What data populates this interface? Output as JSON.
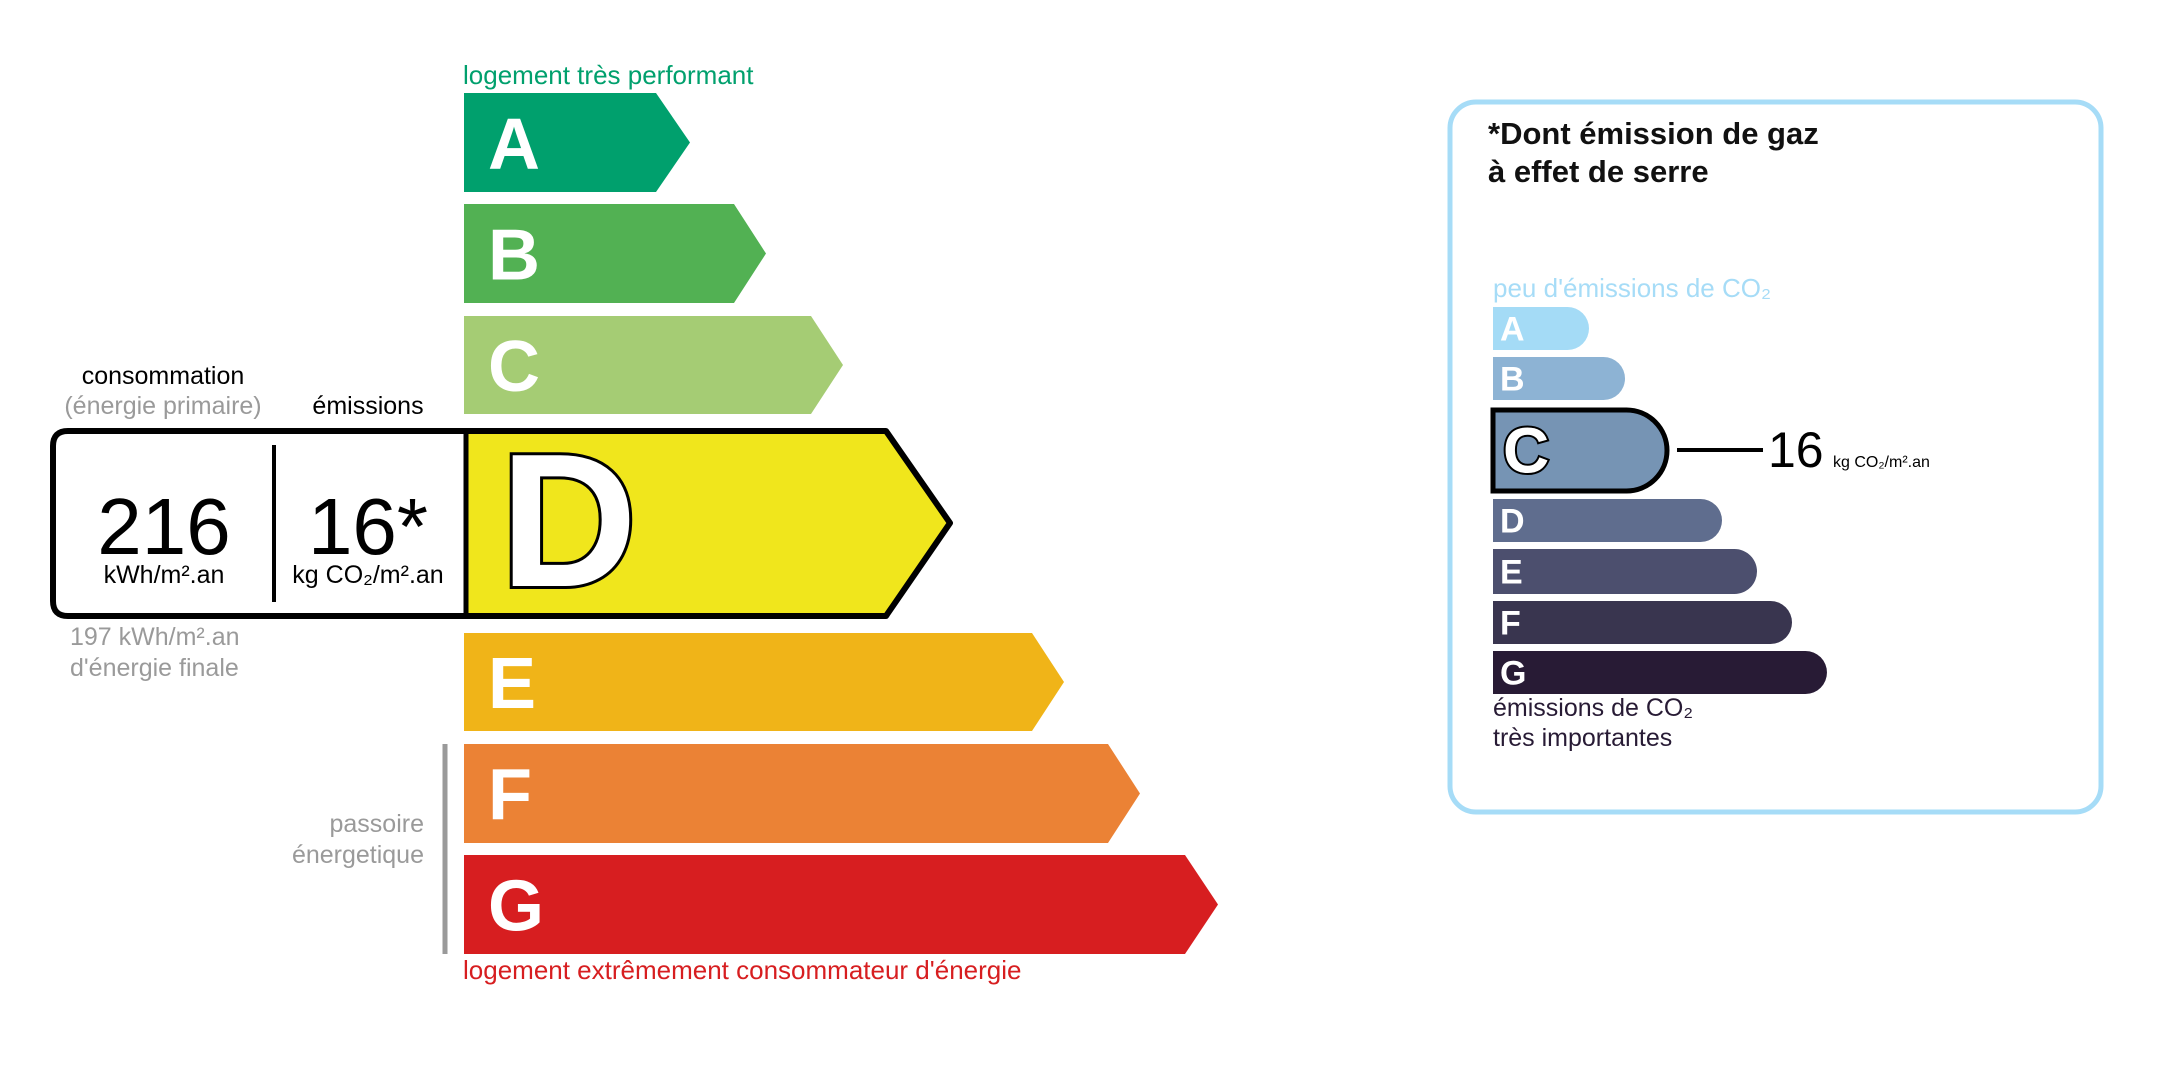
{
  "energy": {
    "top_label": "logement très performant",
    "bottom_label": "logement extrêmement consommateur d'énergie",
    "passoire_line1": "passoire",
    "passoire_line2": "énergetique",
    "consumption_title": "consommation",
    "consumption_subtitle": "(énergie primaire)",
    "emissions_title": "émissions",
    "consumption_value": "216",
    "consumption_unit": "kWh/m².an",
    "emissions_value": "16*",
    "emissions_unit": "kg CO₂/m².an",
    "final_value": "197 kWh/m².an",
    "final_label": "d'énergie finale",
    "current_class": "D",
    "classes": [
      {
        "letter": "A",
        "color": "#00a06d"
      },
      {
        "letter": "B",
        "color": "#52b153"
      },
      {
        "letter": "C",
        "color": "#a5cc74"
      },
      {
        "letter": "D",
        "color": "#f0e61c"
      },
      {
        "letter": "E",
        "color": "#f0b418"
      },
      {
        "letter": "F",
        "color": "#eb8235"
      },
      {
        "letter": "G",
        "color": "#d71e20"
      }
    ],
    "top_color": "#00a06d",
    "bottom_color": "#d71e20"
  },
  "ghg": {
    "title_line1": "*Dont émission de gaz",
    "title_line2": "à effet de serre",
    "top_label": "peu d'émissions de CO₂",
    "bottom_line1": "émissions de CO₂",
    "bottom_line2": "très importantes",
    "current_class": "C",
    "value": "16",
    "unit": "kg CO₂/m².an",
    "border_color": "#a6dcf7",
    "classes": [
      {
        "letter": "A",
        "color": "#a4dbf6"
      },
      {
        "letter": "B",
        "color": "#8db3d4"
      },
      {
        "letter": "C",
        "color": "#7694b4"
      },
      {
        "letter": "D",
        "color": "#5f6d8e"
      },
      {
        "letter": "E",
        "color": "#4c4f6e"
      },
      {
        "letter": "F",
        "color": "#39354f"
      },
      {
        "letter": "G",
        "color": "#281b35"
      }
    ]
  }
}
